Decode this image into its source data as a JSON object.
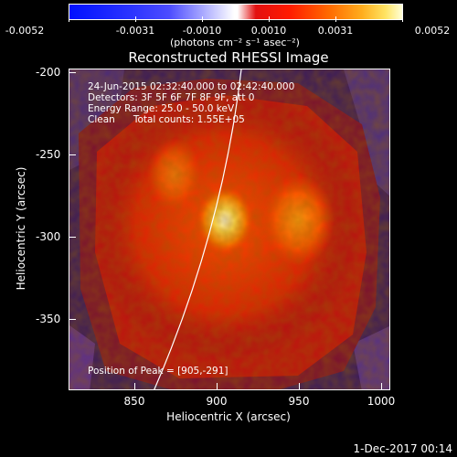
{
  "colorbar": {
    "ticks": [
      "-0.0052",
      "-0.0031",
      "-0.0010",
      "0.0010",
      "0.0031",
      "0.0052"
    ],
    "unit": "(photons cm⁻² s⁻¹ asec⁻²)"
  },
  "chart_data": {
    "type": "heatmap",
    "title": "Reconstructed RHESSI Image",
    "xlabel": "Heliocentric X (arcsec)",
    "ylabel": "Heliocentric Y (arcsec)",
    "xlim": [
      810,
      1005
    ],
    "ylim": [
      -390,
      -195
    ],
    "xticks": [
      850,
      900,
      950,
      1000
    ],
    "yticks": [
      -200,
      -250,
      -300,
      -350
    ],
    "limb_line": "white solar limb curve",
    "annotations": [
      "24-Jun-2015 02:32:40.000 to 02:42:40.000",
      "Detectors: 3F 5F 6F 7F 8F 9F, att 0",
      "Energy Range: 25.0 - 50.0 keV",
      "Clean      Total counts: 1.55E+05"
    ],
    "peak_label": "Position of Peak = [905,-291]",
    "peak": {
      "x": 905,
      "y": -291
    }
  },
  "footer": "1-Dec-2017 00:14"
}
